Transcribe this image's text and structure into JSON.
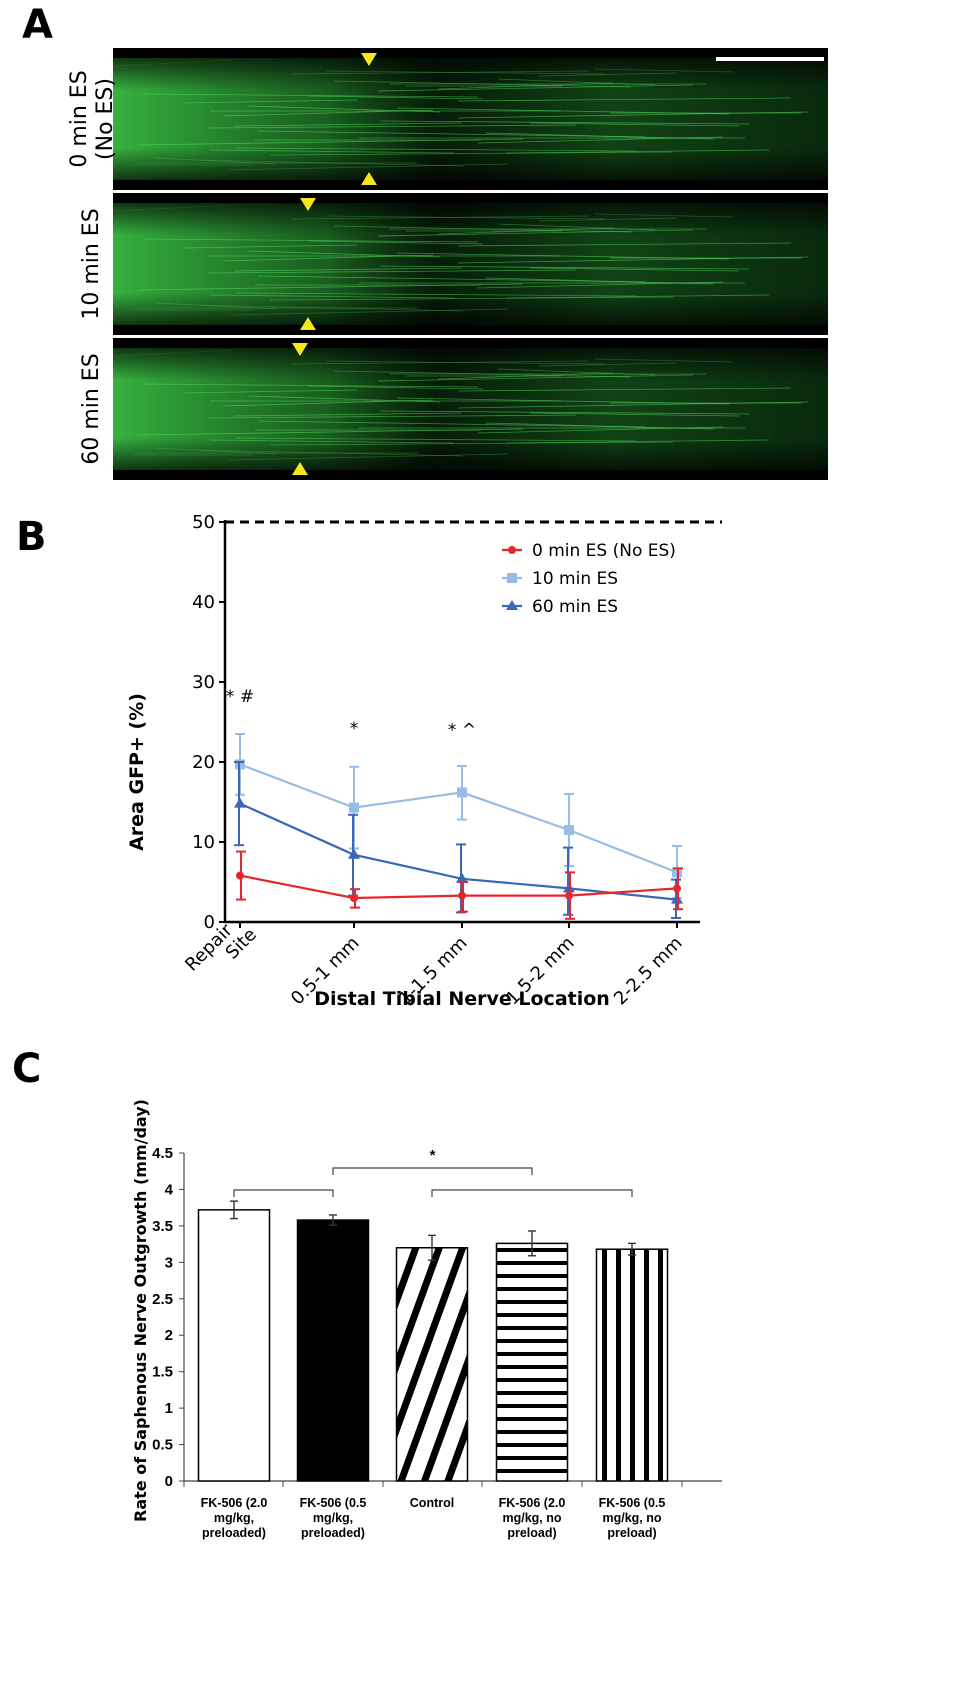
{
  "panel_labels": {
    "a": "A",
    "b": "B",
    "c": "C"
  },
  "panel_a": {
    "rows": [
      {
        "label_lines": [
          "0 min ES",
          "(No ES)"
        ]
      },
      {
        "label_lines": [
          "10 min ES"
        ]
      },
      {
        "label_lines": [
          "60 min ES"
        ]
      }
    ],
    "image_color": "#3fd14a",
    "marker_color": "#f5e71c",
    "scale_bar": true
  },
  "chart_data": [
    {
      "type": "line",
      "xlabel": "Distal Tibial Nerve Location",
      "ylabel": "Area GFP+ (%)",
      "categories": [
        "Repair Site",
        "0.5-1 mm",
        "1-1.5 mm",
        "1.5-2 mm",
        "2-2.5 mm"
      ],
      "category_lines": [
        [
          "Repair",
          "Site"
        ],
        [
          "0.5-1 mm"
        ],
        [
          "1-1.5 mm"
        ],
        [
          "1.5-2 mm"
        ],
        [
          "2-2.5 mm"
        ]
      ],
      "ylim": [
        0,
        50
      ],
      "yticks": [
        "0",
        "10",
        "20",
        "30",
        "40",
        "50"
      ],
      "reference_line": {
        "y": 50,
        "style": "dashed"
      },
      "legend_position": "top-right",
      "series": [
        {
          "name": "0 min ES (No ES)",
          "color": "#e8262a",
          "marker": "circle",
          "values": [
            5.8,
            3.0,
            3.3,
            3.3,
            4.2
          ],
          "err_low": [
            2.8,
            1.8,
            1.3,
            0.4,
            1.6
          ],
          "err_high": [
            8.8,
            4.1,
            5.0,
            6.2,
            6.7
          ]
        },
        {
          "name": "10 min ES",
          "color": "#97bde6",
          "marker": "square",
          "values": [
            19.7,
            14.3,
            16.2,
            11.5,
            6.2
          ],
          "err_low": [
            15.9,
            9.2,
            12.8,
            7.0,
            3.0
          ],
          "err_high": [
            23.5,
            19.4,
            19.5,
            16.0,
            9.5
          ]
        },
        {
          "name": "60 min ES",
          "color": "#3a67b8",
          "marker": "triangle",
          "values": [
            14.8,
            8.4,
            5.4,
            4.2,
            2.8
          ],
          "err_low": [
            9.6,
            3.3,
            1.2,
            0.9,
            0.5
          ],
          "err_high": [
            20.0,
            13.4,
            9.7,
            9.3,
            5.3
          ]
        }
      ],
      "annotations": [
        {
          "category": "Repair Site",
          "text": "* #",
          "y": 27.5
        },
        {
          "category": "0.5-1 mm",
          "text": "*",
          "y": 23.5
        },
        {
          "category": "1-1.5 mm",
          "text": "* ^",
          "y": 23.3
        }
      ]
    },
    {
      "type": "bar",
      "ylabel": "Rate of Saphenous Nerve Outgrowth (mm/day)",
      "categories": [
        "FK-506 (2.0 mg/kg, preloaded)",
        "FK-506 (0.5 mg/kg, preloaded)",
        "Control",
        "FK-506 (2.0 mg/kg, no preload)",
        "FK-506 (0.5 mg/kg, no preload)"
      ],
      "category_lines": [
        [
          "FK-506 (2.0",
          "mg/kg,",
          "preloaded)"
        ],
        [
          "FK-506 (0.5",
          "mg/kg,",
          "preloaded)"
        ],
        [
          "Control"
        ],
        [
          "FK-506 (2.0",
          "mg/kg, no",
          "preload)"
        ],
        [
          "FK-506 (0.5",
          "mg/kg, no",
          "preload)"
        ]
      ],
      "values": [
        3.72,
        3.58,
        3.2,
        3.26,
        3.18
      ],
      "errors": [
        0.12,
        0.07,
        0.17,
        0.17,
        0.08
      ],
      "fills": [
        "white",
        "black",
        "diagonal-stripes",
        "horizontal-stripes",
        "vertical-stripes"
      ],
      "ylim": [
        0,
        4.5
      ],
      "yticks": [
        "0",
        "0.5",
        "1",
        "1.5",
        "2",
        "2.5",
        "3",
        "3.5",
        "4",
        "4.5"
      ],
      "significance": [
        {
          "from": 0,
          "to": 1,
          "y": 4.0
        },
        {
          "from": 1,
          "to": 3,
          "y": 4.3,
          "label": "*"
        },
        {
          "from": 2,
          "to": 4,
          "y": 4.0
        }
      ]
    }
  ]
}
